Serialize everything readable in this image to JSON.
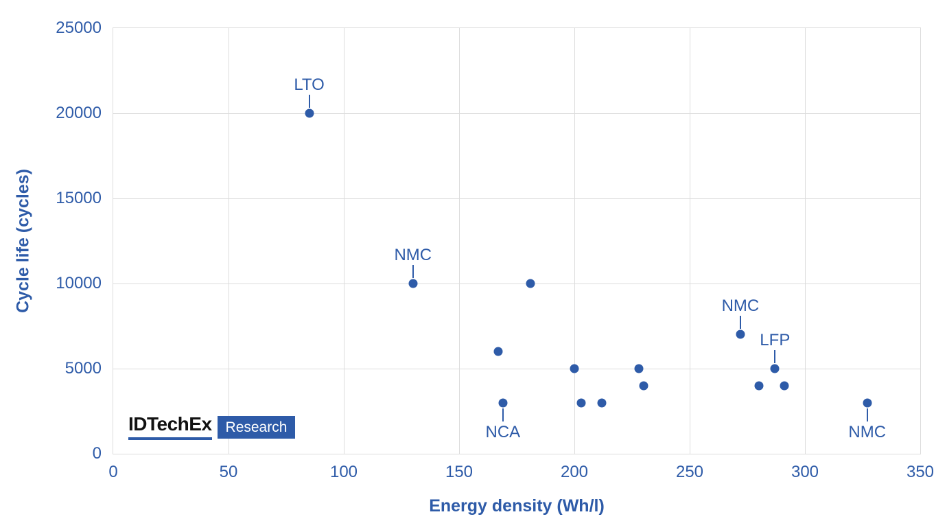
{
  "colors": {
    "accent": "#2e5ba8",
    "grid": "#dcdcdc",
    "background": "#ffffff",
    "logo_text": "#121212",
    "logo_badge_text": "#ffffff"
  },
  "logo": {
    "brand": "IDTechEx",
    "sub": "Research"
  },
  "chart_data": {
    "type": "scatter",
    "title": "",
    "xlabel": "Energy density (Wh/l)",
    "ylabel": "Cycle life (cycles)",
    "xlim": [
      0,
      350
    ],
    "ylim": [
      0,
      25000
    ],
    "xticks": [
      0,
      50,
      100,
      150,
      200,
      250,
      300,
      350
    ],
    "yticks": [
      0,
      5000,
      10000,
      15000,
      20000,
      25000
    ],
    "grid": true,
    "legend": false,
    "point_color": "#2e5ba8",
    "points": [
      {
        "x": 85,
        "y": 20000,
        "label": "LTO",
        "label_pos": "above"
      },
      {
        "x": 130,
        "y": 10000,
        "label": "NMC",
        "label_pos": "above"
      },
      {
        "x": 167,
        "y": 6000
      },
      {
        "x": 169,
        "y": 3000,
        "label": "NCA",
        "label_pos": "below"
      },
      {
        "x": 181,
        "y": 10000
      },
      {
        "x": 200,
        "y": 5000
      },
      {
        "x": 203,
        "y": 3000
      },
      {
        "x": 212,
        "y": 3000
      },
      {
        "x": 228,
        "y": 5000
      },
      {
        "x": 230,
        "y": 4000
      },
      {
        "x": 272,
        "y": 7000,
        "label": "NMC",
        "label_pos": "above"
      },
      {
        "x": 280,
        "y": 4000
      },
      {
        "x": 287,
        "y": 5000,
        "label": "LFP",
        "label_pos": "above"
      },
      {
        "x": 291,
        "y": 4000
      },
      {
        "x": 327,
        "y": 3000,
        "label": "NMC",
        "label_pos": "below"
      }
    ]
  }
}
